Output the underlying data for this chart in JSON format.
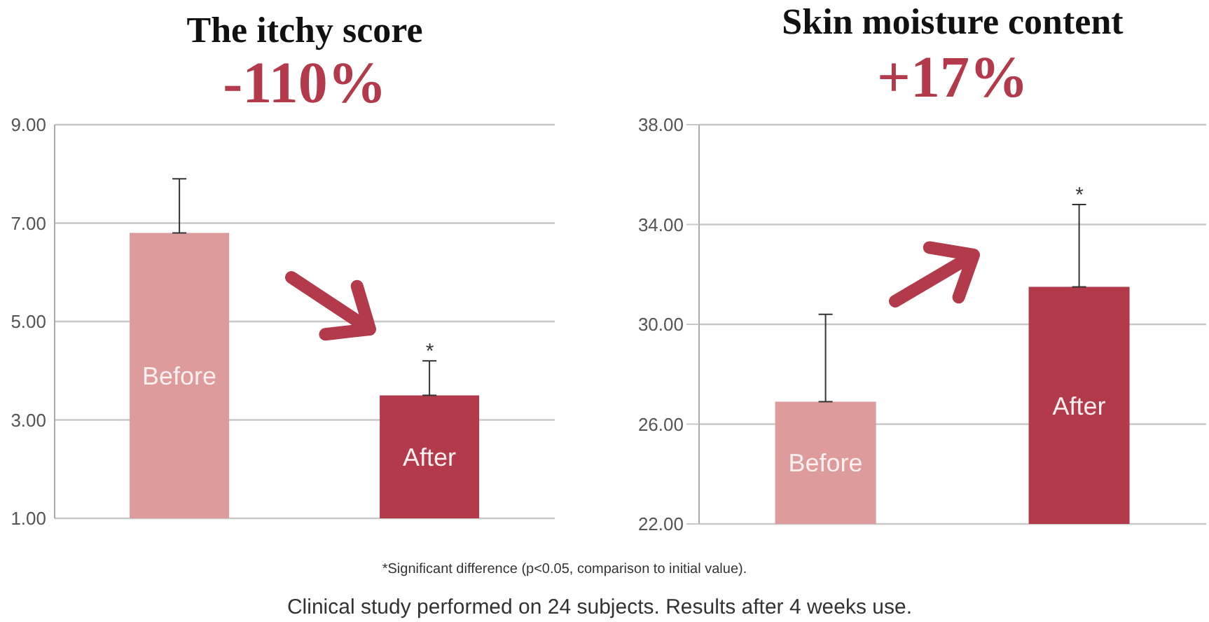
{
  "chart_data": [
    {
      "type": "bar",
      "title": "The itchy score",
      "subtitle": "-110%",
      "categories": [
        "Before",
        "After"
      ],
      "values": [
        6.8,
        3.5
      ],
      "colors": [
        "#dd9b9c",
        "#b33a4a"
      ],
      "errors": [
        [
          6.8,
          7.9
        ],
        [
          3.5,
          4.2
        ]
      ],
      "ylim": [
        1,
        9
      ],
      "yticks": [
        {
          "value": 1,
          "label": "1.00"
        },
        {
          "value": 3,
          "label": "3.00"
        },
        {
          "value": 5,
          "label": "5.00"
        },
        {
          "value": 7,
          "label": "7.00"
        },
        {
          "value": 9,
          "label": "9.00"
        }
      ],
      "grid": "y",
      "tick_labels": "y",
      "annotations": [
        {
          "text": "*",
          "x": "After",
          "y": 4.2
        }
      ]
    },
    {
      "type": "bar",
      "title": "Skin moisture content",
      "subtitle": "+17%",
      "categories": [
        "Before",
        "After"
      ],
      "values": [
        26.9,
        31.5
      ],
      "colors": [
        "#dd9b9c",
        "#b33a4a"
      ],
      "errors": [
        [
          26.9,
          30.4
        ],
        [
          31.5,
          34.8
        ]
      ],
      "ylim": [
        22,
        38
      ],
      "yticks": [
        {
          "value": 22,
          "label": "22.00"
        },
        {
          "value": 26,
          "label": "26.00"
        },
        {
          "value": 30,
          "label": "30.00"
        },
        {
          "value": 34,
          "label": "34.00"
        },
        {
          "value": 38,
          "label": "38.00"
        }
      ],
      "grid": "y",
      "tick_labels": "y",
      "annotations": [
        {
          "text": "*",
          "x": "After",
          "y": 34.8
        },
        "*Significant difference (p<0.05, comparison to initial value).",
        "Clinical study performed on 24 subjects. Results after 4 weeks use."
      ]
    }
  ]
}
